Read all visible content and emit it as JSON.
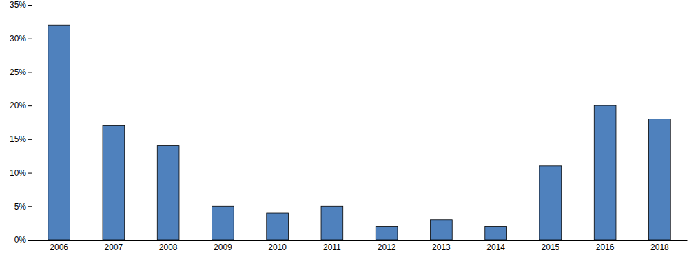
{
  "chart_data": {
    "type": "bar",
    "categories": [
      "2006",
      "2007",
      "2008",
      "2009",
      "2010",
      "2011",
      "2012",
      "2013",
      "2014",
      "2015",
      "2016",
      "2018"
    ],
    "values": [
      32,
      17,
      14,
      5,
      4,
      5,
      2,
      3,
      2,
      11,
      20,
      18
    ],
    "color": "#4f81bd",
    "ylim": [
      0,
      35
    ],
    "yticks": [
      {
        "value": 0,
        "label": "0%"
      },
      {
        "value": 5,
        "label": "5%"
      },
      {
        "value": 10,
        "label": "10%"
      },
      {
        "value": 15,
        "label": "15%"
      },
      {
        "value": 20,
        "label": "20%"
      },
      {
        "value": 25,
        "label": "25%"
      },
      {
        "value": 30,
        "label": "30%"
      },
      {
        "value": 35,
        "label": "35%"
      }
    ],
    "grid": false
  }
}
